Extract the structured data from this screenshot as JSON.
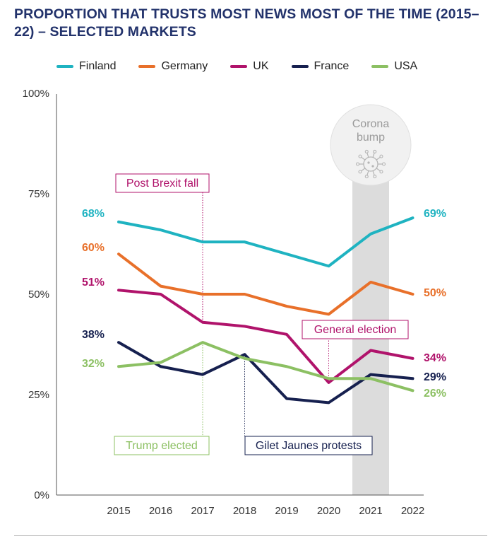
{
  "title": "PROPORTION THAT TRUSTS MOST NEWS MOST OF THE TIME (2015–22) – SELECTED MARKETS",
  "chart_data": {
    "type": "line",
    "title": "PROPORTION THAT TRUSTS MOST NEWS MOST OF THE TIME (2015–22) – SELECTED MARKETS",
    "x": [
      "2015",
      "2016",
      "2017",
      "2018",
      "2019",
      "2020",
      "2021",
      "2022"
    ],
    "ylim": [
      0,
      100
    ],
    "yticks": [
      0,
      25,
      50,
      75,
      100
    ],
    "ytick_labels": [
      "0%",
      "25%",
      "50%",
      "75%",
      "100%"
    ],
    "grid": false,
    "legend_position": "top",
    "series": [
      {
        "name": "Finland",
        "color": "#1fb3c1",
        "values": [
          68,
          66,
          63,
          63,
          60,
          57,
          65,
          69
        ],
        "start_label": "68%",
        "end_label": "69%"
      },
      {
        "name": "Germany",
        "color": "#e8702a",
        "values": [
          60,
          52,
          50,
          50,
          47,
          45,
          53,
          50
        ],
        "start_label": "60%",
        "end_label": "50%"
      },
      {
        "name": "UK",
        "color": "#b0136b",
        "values": [
          51,
          50,
          43,
          42,
          40,
          28,
          36,
          34
        ],
        "start_label": "51%",
        "end_label": "34%"
      },
      {
        "name": "France",
        "color": "#16204f",
        "values": [
          38,
          32,
          30,
          35,
          24,
          23,
          30,
          29
        ],
        "start_label": "38%",
        "end_label": "29%"
      },
      {
        "name": "USA",
        "color": "#8cc063",
        "values": [
          32,
          33,
          38,
          34,
          32,
          29,
          29,
          26
        ],
        "start_label": "32%",
        "end_label": "26%"
      }
    ],
    "highlight_band": {
      "year": "2021",
      "label_line1": "Corona",
      "label_line2": "bump",
      "color": "#dcdcdc"
    },
    "annotations": [
      {
        "id": "post-brexit",
        "text": "Post Brexit fall",
        "color": "#b0136b",
        "anchor_year": "2017",
        "series": "UK"
      },
      {
        "id": "trump",
        "text": "Trump elected",
        "color": "#8cc063",
        "anchor_year": "2017",
        "series": "USA"
      },
      {
        "id": "gilet",
        "text": "Gilet Jaunes protests",
        "color": "#16204f",
        "anchor_year": "2018",
        "series": "France"
      },
      {
        "id": "general-election",
        "text": "General election",
        "color": "#b0136b",
        "anchor_year": "2020",
        "series": "UK"
      }
    ]
  }
}
